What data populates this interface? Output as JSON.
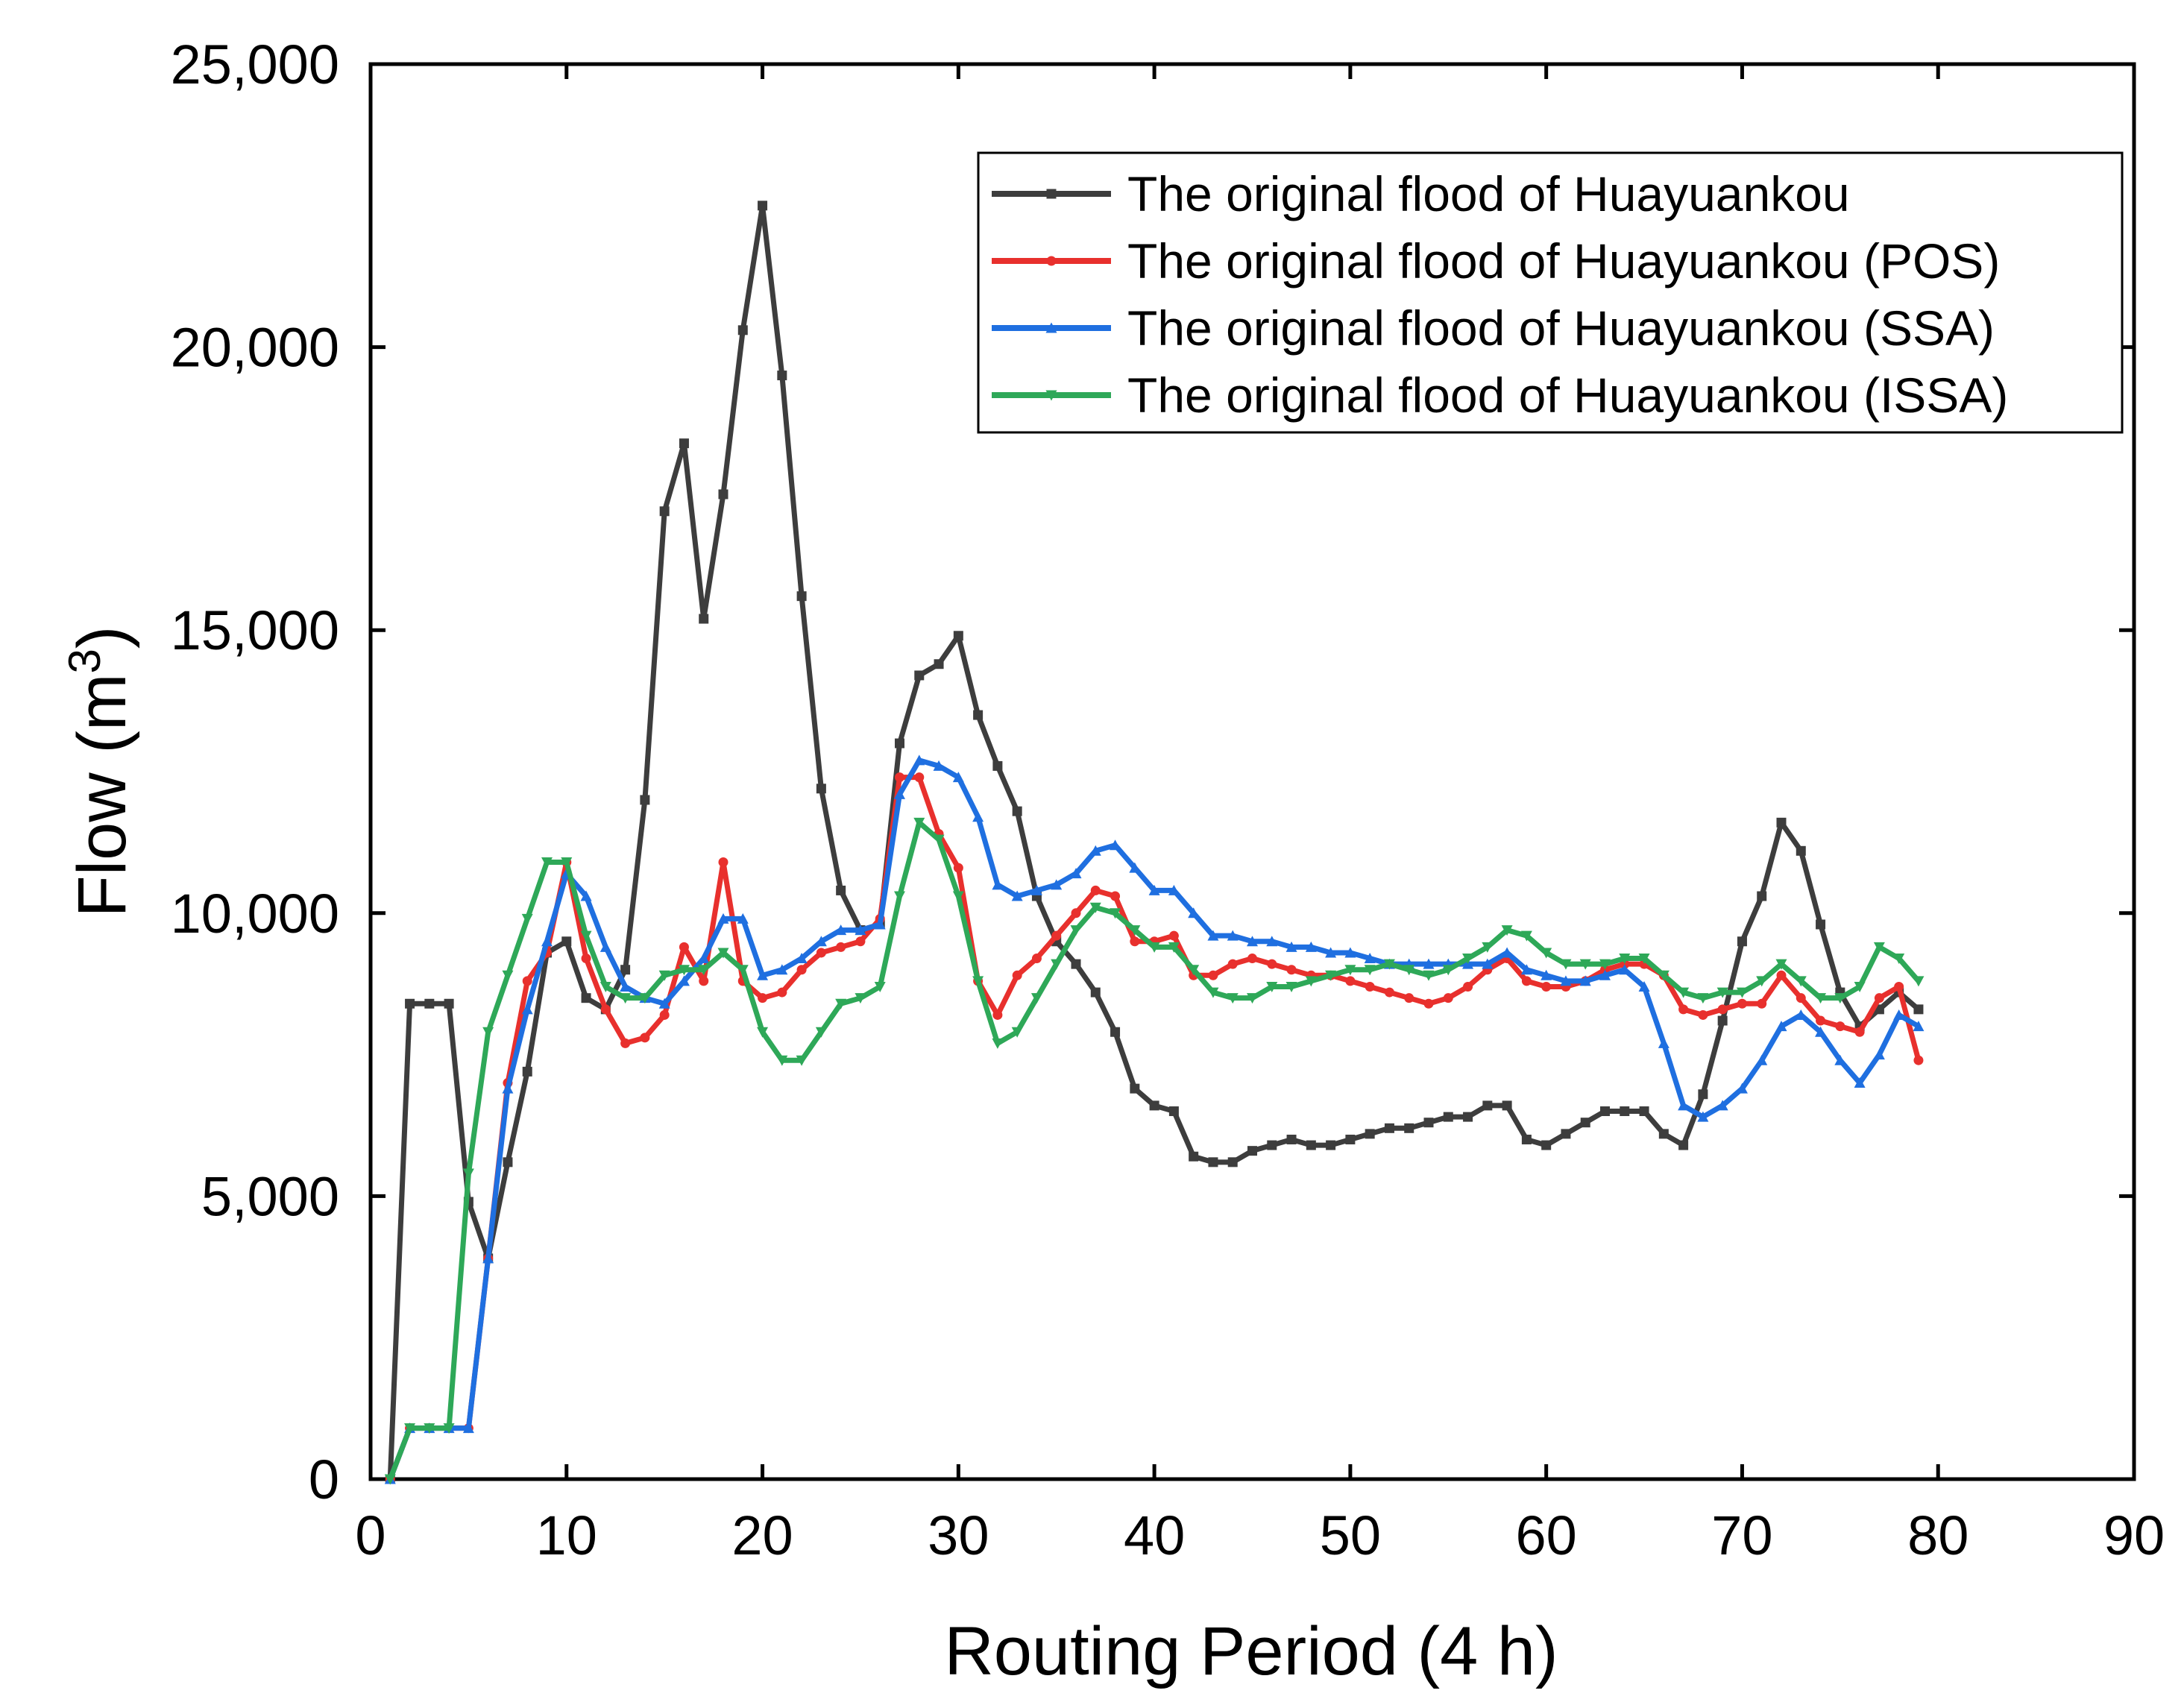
{
  "chart_data": {
    "type": "line",
    "title": "",
    "xlabel": "Routing Period (4 h)",
    "ylabel_main": "Flow (m",
    "ylabel_sup": "3",
    "ylabel_end": ")",
    "xlim": [
      0,
      90
    ],
    "ylim": [
      0,
      25000
    ],
    "xticks": [
      0,
      10,
      20,
      30,
      40,
      50,
      60,
      70,
      80,
      90
    ],
    "yticks": [
      0,
      5000,
      10000,
      15000,
      20000,
      25000
    ],
    "xtick_labels": [
      "0",
      "10",
      "20",
      "30",
      "40",
      "50",
      "60",
      "70",
      "80",
      "90"
    ],
    "ytick_labels": [
      "0",
      "5,000",
      "10,000",
      "15,000",
      "20,000",
      "25,000"
    ],
    "grid": false,
    "legend_position": "top-right",
    "x": [
      1,
      2,
      3,
      4,
      5,
      6,
      7,
      8,
      9,
      10,
      11,
      12,
      13,
      14,
      15,
      16,
      17,
      18,
      19,
      20,
      21,
      22,
      23,
      24,
      25,
      26,
      27,
      28,
      29,
      30,
      31,
      32,
      33,
      34,
      35,
      36,
      37,
      38,
      39,
      40,
      41,
      42,
      43,
      44,
      45,
      46,
      47,
      48,
      49,
      50,
      51,
      52,
      53,
      54,
      55,
      56,
      57,
      58,
      59,
      60,
      61,
      62,
      63,
      64,
      65,
      66,
      67,
      68,
      69,
      70,
      71,
      72,
      73,
      74,
      75,
      76,
      77,
      78,
      79
    ],
    "series": [
      {
        "name": "The original flood of Huayuankou",
        "color": "#3d3d3d",
        "marker": "square",
        "values": [
          0,
          8400,
          8400,
          8400,
          4900,
          3900,
          5600,
          7200,
          9300,
          9500,
          8500,
          8300,
          9000,
          12000,
          17100,
          18300,
          15200,
          17400,
          20300,
          22500,
          19500,
          15600,
          12200,
          10400,
          9700,
          9800,
          13000,
          14200,
          14400,
          14900,
          13500,
          12600,
          11800,
          10300,
          9500,
          9100,
          8600,
          7900,
          6900,
          6600,
          6500,
          5700,
          5600,
          5600,
          5800,
          5900,
          6000,
          5900,
          5900,
          6000,
          6100,
          6200,
          6200,
          6300,
          6400,
          6400,
          6600,
          6600,
          6000,
          5900,
          6100,
          6300,
          6500,
          6500,
          6500,
          6100,
          5900,
          6800,
          8100,
          9500,
          10300,
          11600,
          11100,
          9800,
          8600,
          8000,
          8300,
          8600,
          8300
        ]
      },
      {
        "name": "The original flood of Huayuankou (POS)",
        "color": "#e8302d",
        "marker": "circle",
        "values": [
          0,
          900,
          900,
          900,
          900,
          3900,
          7000,
          8800,
          9300,
          10900,
          9200,
          8300,
          7700,
          7800,
          8200,
          9400,
          8800,
          10900,
          8800,
          8500,
          8600,
          9000,
          9300,
          9400,
          9500,
          9900,
          12400,
          12400,
          11400,
          10800,
          8800,
          8200,
          8900,
          9200,
          9600,
          10000,
          10400,
          10300,
          9500,
          9500,
          9600,
          8900,
          8900,
          9100,
          9200,
          9100,
          9000,
          8900,
          8900,
          8800,
          8700,
          8600,
          8500,
          8400,
          8500,
          8700,
          9000,
          9200,
          8800,
          8700,
          8700,
          8800,
          9000,
          9100,
          9100,
          8900,
          8300,
          8200,
          8300,
          8400,
          8400,
          8900,
          8500,
          8100,
          8000,
          7900,
          8500,
          8700,
          7400
        ]
      },
      {
        "name": "The original flood of Huayuankou (SSA)",
        "color": "#1f6fe0",
        "marker": "triangle-up",
        "values": [
          0,
          900,
          900,
          900,
          900,
          3900,
          6900,
          8300,
          9500,
          10700,
          10300,
          9400,
          8700,
          8500,
          8400,
          8800,
          9200,
          9900,
          9900,
          8900,
          9000,
          9200,
          9500,
          9700,
          9700,
          9800,
          12100,
          12700,
          12600,
          12400,
          11700,
          10500,
          10300,
          10400,
          10500,
          10700,
          11100,
          11200,
          10800,
          10400,
          10400,
          10000,
          9600,
          9600,
          9500,
          9500,
          9400,
          9400,
          9300,
          9300,
          9200,
          9100,
          9100,
          9100,
          9100,
          9100,
          9100,
          9300,
          9000,
          8900,
          8800,
          8800,
          8900,
          9000,
          8700,
          7700,
          6600,
          6400,
          6600,
          6900,
          7400,
          8000,
          8200,
          7900,
          7400,
          7000,
          7500,
          8200,
          8000
        ]
      },
      {
        "name": "The original flood of Huayuankou (ISSA)",
        "color": "#2ea858",
        "marker": "triangle-down",
        "values": [
          0,
          900,
          900,
          900,
          5400,
          7900,
          8900,
          9900,
          10900,
          10900,
          9600,
          8700,
          8500,
          8500,
          8900,
          9000,
          9000,
          9300,
          9000,
          7900,
          7400,
          7400,
          7900,
          8400,
          8500,
          8700,
          10300,
          11600,
          11300,
          10300,
          8800,
          7700,
          7900,
          8500,
          9100,
          9700,
          10100,
          10000,
          9700,
          9400,
          9400,
          9000,
          8600,
          8500,
          8500,
          8700,
          8700,
          8800,
          8900,
          9000,
          9000,
          9100,
          9000,
          8900,
          9000,
          9200,
          9400,
          9700,
          9600,
          9300,
          9100,
          9100,
          9100,
          9200,
          9200,
          8900,
          8600,
          8500,
          8600,
          8600,
          8800,
          9100,
          8800,
          8500,
          8500,
          8700,
          9400,
          9200,
          8800
        ]
      }
    ]
  }
}
